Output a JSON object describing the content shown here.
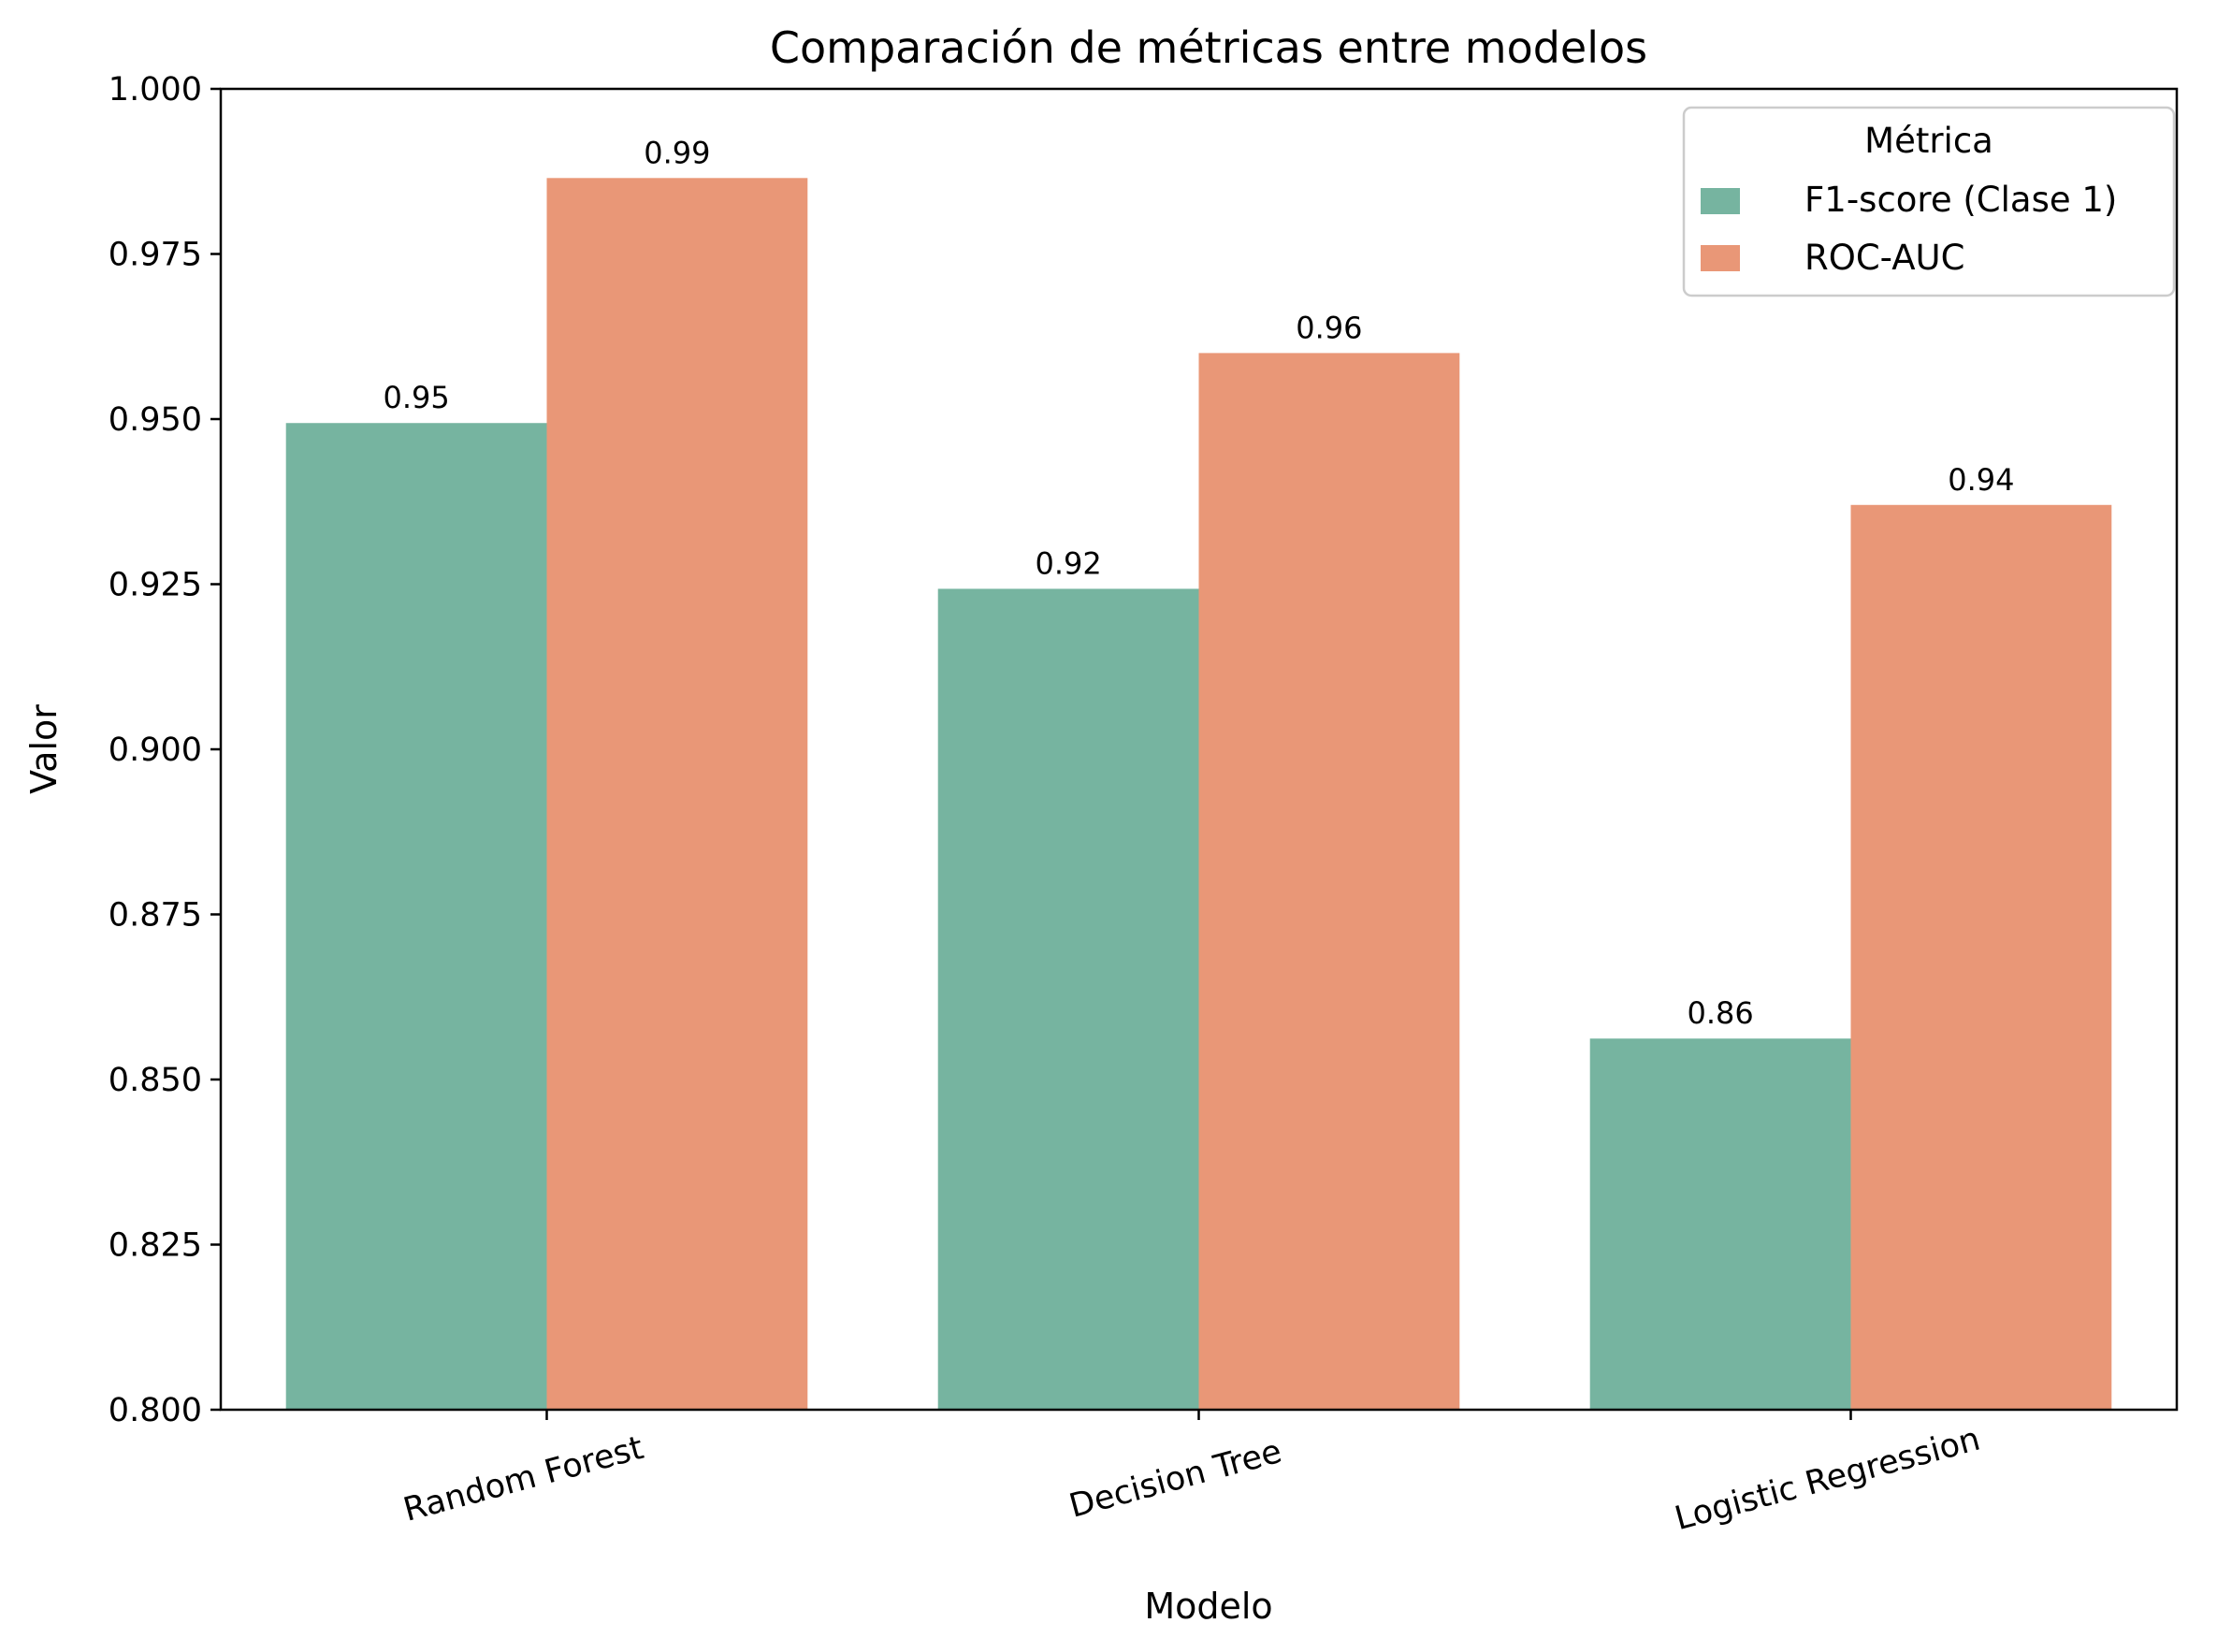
{
  "chart_data": {
    "type": "bar",
    "title": "Comparación de métricas entre modelos",
    "xlabel": "Modelo",
    "ylabel": "Valor",
    "categories": [
      "Random Forest",
      "Decision Tree",
      "Logistic Regression"
    ],
    "series": [
      {
        "name": "F1-score (Clase 1)",
        "values": [
          0.9494,
          0.9243,
          0.8562
        ],
        "labels": [
          "0.95",
          "0.92",
          "0.86"
        ],
        "color": "#76b4a0"
      },
      {
        "name": "ROC-AUC",
        "values": [
          0.9865,
          0.96,
          0.937
        ],
        "labels": [
          "0.99",
          "0.96",
          "0.94"
        ],
        "color": "#e99777"
      }
    ],
    "ylim": [
      0.8,
      1.0
    ],
    "yticks": [
      "0.800",
      "0.825",
      "0.850",
      "0.875",
      "0.900",
      "0.925",
      "0.950",
      "0.975",
      "1.000"
    ],
    "grid": false,
    "legend": {
      "title": "Métrica",
      "placement": "upper right"
    }
  }
}
